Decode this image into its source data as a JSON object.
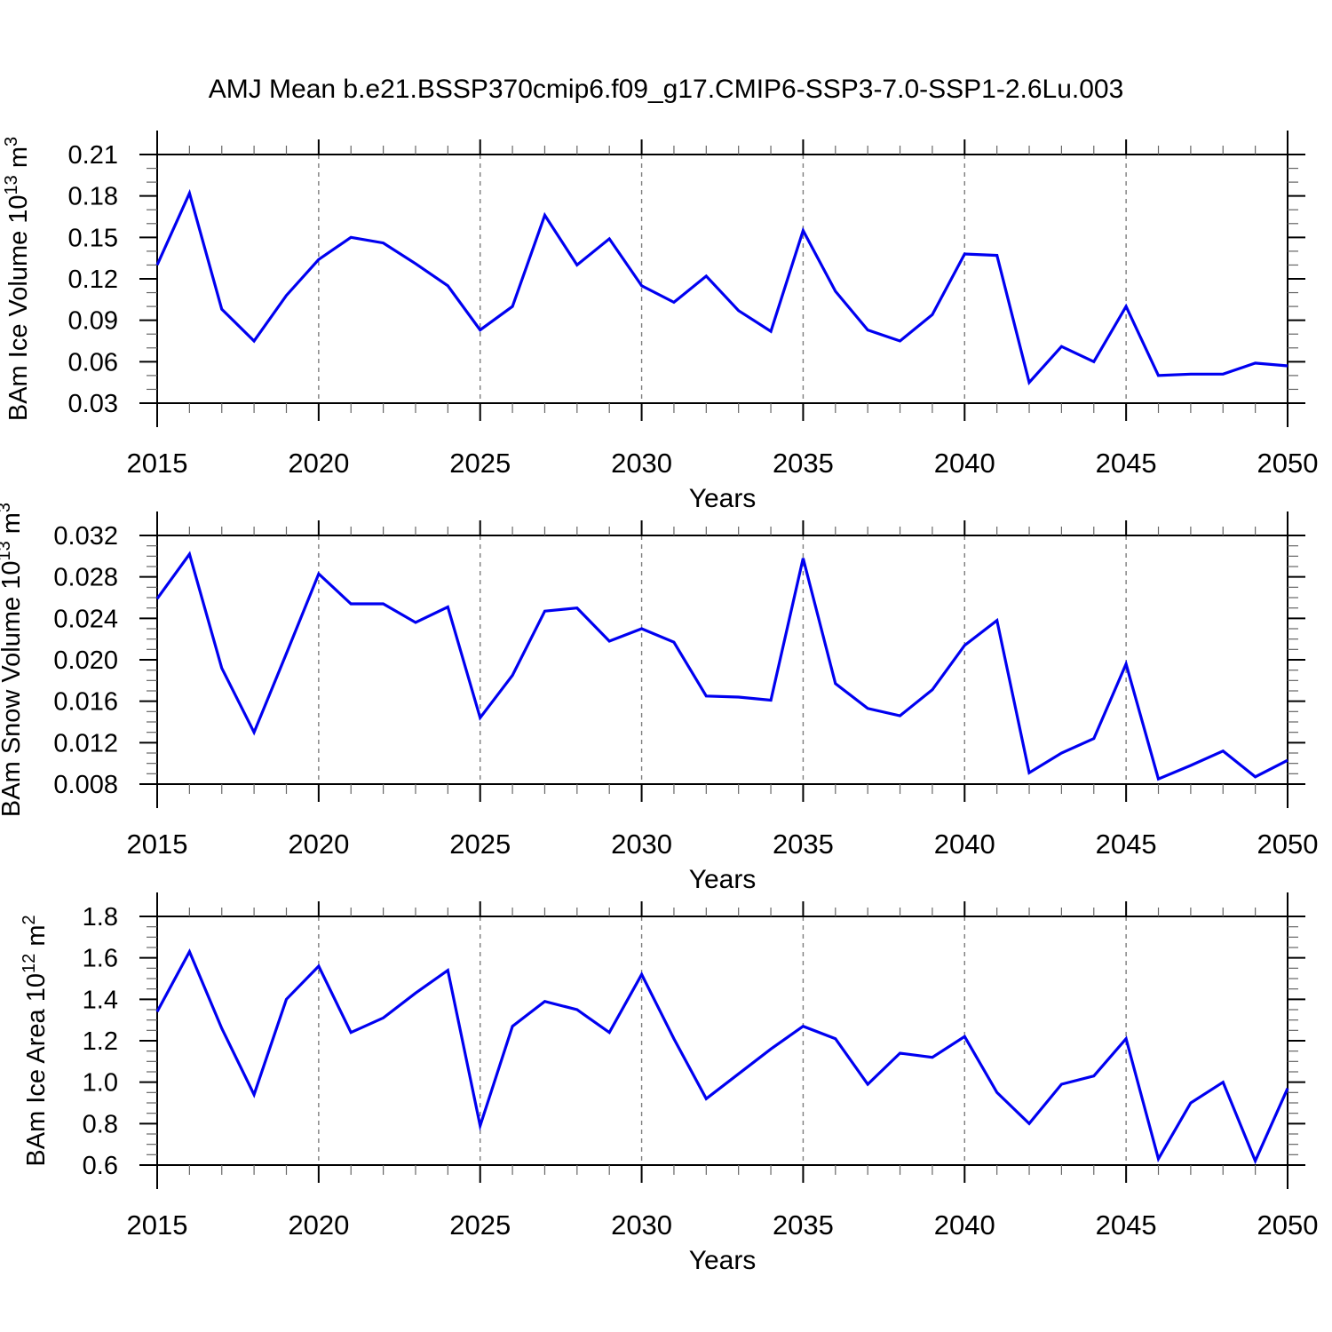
{
  "page": {
    "background": "#ffffff",
    "title": "AMJ Mean b.e21.BSSP370cmip6.f09_g17.CMIP6-SSP3-7.0-SSP1-2.6Lu.003"
  },
  "style": {
    "line_color": "#0000f0",
    "grid_color": "#7d7d7d",
    "axis_color": "#000000",
    "minor_tick_color": "#666666",
    "text_color": "#000000"
  },
  "chart_data": {
    "type": "line",
    "title": "AMJ Mean b.e21.BSSP370cmip6.f09_g17.CMIP6-SSP3-7.0-SSP1-2.6Lu.003",
    "xlabel": "Years",
    "x": [
      2015,
      2016,
      2017,
      2018,
      2019,
      2020,
      2021,
      2022,
      2023,
      2024,
      2025,
      2026,
      2027,
      2028,
      2029,
      2030,
      2031,
      2032,
      2033,
      2034,
      2035,
      2036,
      2037,
      2038,
      2039,
      2040,
      2041,
      2042,
      2043,
      2044,
      2045,
      2046,
      2047,
      2048,
      2049,
      2050
    ],
    "xlim": [
      2015,
      2050
    ],
    "x_major_step": 5,
    "x_minor_step": 1,
    "x_tick_labels": [
      "2015",
      "2020",
      "2025",
      "2030",
      "2035",
      "2040",
      "2045",
      "2050"
    ],
    "gridline_years": [
      2020,
      2025,
      2030,
      2035,
      2040,
      2045
    ],
    "grid_style": "vertical dashed gridlines at 5-year intervals, no horizontal grid",
    "legend": null,
    "panels": [
      {
        "id": "ice-volume",
        "ylabel": "BAm Ice Volume 10^13 m^3",
        "ylabel_parts": [
          {
            "text": "BAm Ice Volume 10"
          },
          {
            "text": "13",
            "sup": true
          },
          {
            "text": " m"
          },
          {
            "text": "3",
            "sup": true
          }
        ],
        "ylim": [
          0.03,
          0.21
        ],
        "ytick_major": 0.03,
        "ytick_minor": 0.01,
        "y_tick_labels": [
          "0.21",
          "0.18",
          "0.15",
          "0.12",
          "0.09",
          "0.06",
          "0.03"
        ],
        "ylabel_x": 30,
        "values": [
          0.13,
          0.182,
          0.098,
          0.075,
          0.108,
          0.134,
          0.15,
          0.146,
          0.131,
          0.115,
          0.083,
          0.1,
          0.166,
          0.13,
          0.149,
          0.115,
          0.103,
          0.122,
          0.097,
          0.082,
          0.155,
          0.111,
          0.083,
          0.075,
          0.094,
          0.138,
          0.137,
          0.045,
          0.071,
          0.06,
          0.1,
          0.05,
          0.051,
          0.051,
          0.059,
          0.057
        ]
      },
      {
        "id": "snow-volume",
        "ylabel": "BAm Snow Volume 10^13 m^3",
        "ylabel_parts": [
          {
            "text": "BAm Snow Volume 10"
          },
          {
            "text": "13",
            "sup": true
          },
          {
            "text": " m"
          },
          {
            "text": "3",
            "sup": true
          }
        ],
        "ylim": [
          0.008,
          0.032
        ],
        "ytick_major": 0.004,
        "ytick_minor": 0.001,
        "y_tick_labels": [
          "0.032",
          "0.028",
          "0.024",
          "0.020",
          "0.016",
          "0.012",
          "0.008"
        ],
        "ylabel_x": 22,
        "values": [
          0.0259,
          0.0302,
          0.0192,
          0.013,
          0.0206,
          0.0283,
          0.0254,
          0.0254,
          0.0236,
          0.0251,
          0.0144,
          0.0185,
          0.0247,
          0.025,
          0.0218,
          0.023,
          0.0217,
          0.0165,
          0.0164,
          0.0161,
          0.0298,
          0.0177,
          0.0153,
          0.0146,
          0.0171,
          0.0214,
          0.0238,
          0.0091,
          0.011,
          0.0124,
          0.0196,
          0.0085,
          0.0098,
          0.0112,
          0.0087,
          0.0103
        ]
      },
      {
        "id": "ice-area",
        "ylabel": "BAm Ice Area 10^12 m^2",
        "ylabel_parts": [
          {
            "text": "BAm Ice Area 10"
          },
          {
            "text": "12",
            "sup": true
          },
          {
            "text": " m"
          },
          {
            "text": "2",
            "sup": true
          }
        ],
        "ylim": [
          0.6,
          1.8
        ],
        "ytick_major": 0.2,
        "ytick_minor": 0.05,
        "y_tick_labels": [
          "1.8",
          "1.6",
          "1.4",
          "1.2",
          "1.0",
          "0.8",
          "0.6"
        ],
        "ylabel_x": 50,
        "values": [
          1.34,
          1.63,
          1.26,
          0.94,
          1.4,
          1.56,
          1.24,
          1.31,
          1.43,
          1.54,
          0.79,
          1.27,
          1.39,
          1.35,
          1.24,
          1.52,
          1.21,
          0.92,
          1.04,
          1.16,
          1.27,
          1.21,
          0.99,
          1.14,
          1.12,
          1.22,
          0.95,
          0.8,
          0.99,
          1.03,
          1.21,
          0.63,
          0.9,
          1.0,
          0.62,
          0.97
        ]
      }
    ]
  }
}
